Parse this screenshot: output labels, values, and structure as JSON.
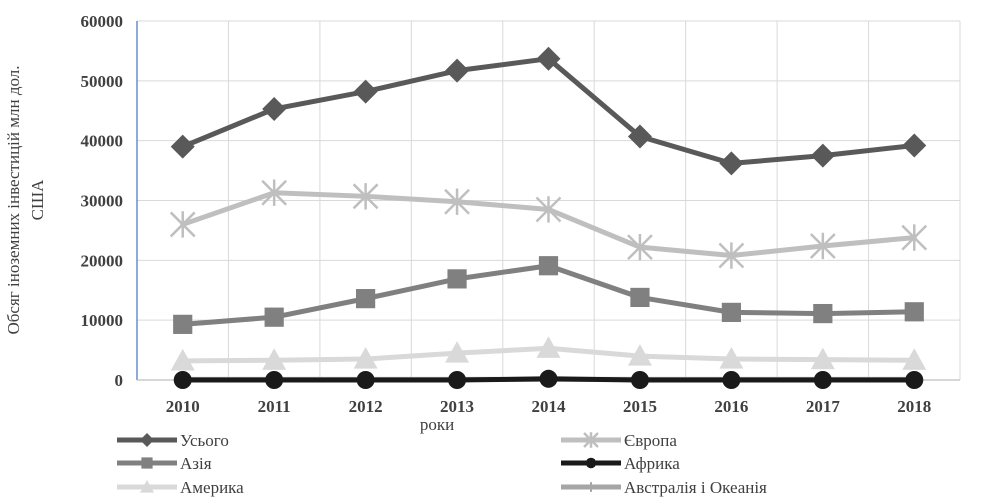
{
  "chart_data": {
    "type": "line",
    "categories": [
      "2010",
      "2011",
      "2012",
      "2013",
      "2014",
      "2015",
      "2016",
      "2017",
      "2018"
    ],
    "series": [
      {
        "name": "Усього",
        "marker": "diamond",
        "color": "#595959",
        "values": [
          39000,
          45300,
          48200,
          51700,
          53700,
          40700,
          36200,
          37500,
          39200
        ]
      },
      {
        "name": "Європа",
        "marker": "star",
        "color": "#bfbfbf",
        "values": [
          26000,
          31300,
          30700,
          29800,
          28500,
          22200,
          20800,
          22400,
          23800
        ]
      },
      {
        "name": "Азія",
        "marker": "square",
        "color": "#808080",
        "values": [
          9300,
          10500,
          13600,
          16900,
          19100,
          13800,
          11300,
          11100,
          11400
        ]
      },
      {
        "name": "Африка",
        "marker": "circle",
        "color": "#1a1a1a",
        "values": [
          0,
          0,
          0,
          0,
          200,
          0,
          0,
          0,
          0
        ]
      },
      {
        "name": "Америка",
        "marker": "triangle",
        "color": "#d9d9d9",
        "values": [
          3200,
          3300,
          3500,
          4500,
          5300,
          4000,
          3500,
          3400,
          3300
        ]
      },
      {
        "name": "Австралія і Океанія",
        "marker": "plus",
        "color": "#a6a6a6",
        "values": [
          100,
          100,
          100,
          100,
          100,
          100,
          100,
          100,
          100
        ]
      }
    ],
    "xlabel": "роки",
    "ylabel": "Обсяг іноземних інвестицій млн дол. США",
    "ylim": [
      0,
      60000
    ],
    "yticks": [
      "0",
      "10000",
      "20000",
      "30000",
      "40000",
      "50000",
      "60000"
    ],
    "grid": true,
    "legend_position": "bottom"
  }
}
